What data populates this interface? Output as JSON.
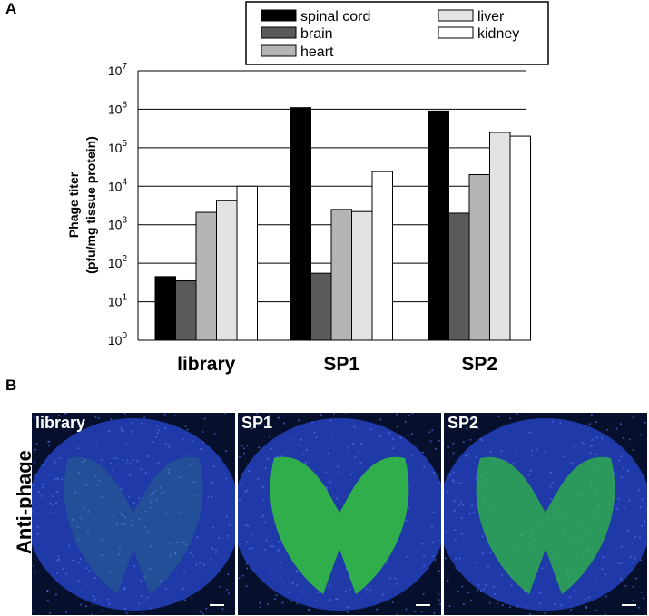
{
  "panels": {
    "a_label": "A",
    "b_label": "B"
  },
  "chart_data": {
    "type": "bar",
    "scale": "log",
    "ylim": [
      1,
      10000000
    ],
    "ylabel_lines": [
      "Phage titer",
      "(pfu/mg tissue protein)"
    ],
    "yticks": [
      {
        "base": "10",
        "exp": "0",
        "value": 1
      },
      {
        "base": "10",
        "exp": "1",
        "value": 10
      },
      {
        "base": "10",
        "exp": "2",
        "value": 100
      },
      {
        "base": "10",
        "exp": "3",
        "value": 1000
      },
      {
        "base": "10",
        "exp": "4",
        "value": 10000
      },
      {
        "base": "10",
        "exp": "5",
        "value": 100000
      },
      {
        "base": "10",
        "exp": "6",
        "value": 1000000
      },
      {
        "base": "10",
        "exp": "7",
        "value": 10000000
      }
    ],
    "grid": true,
    "legend_position": "top",
    "categories": [
      "library",
      "SP1",
      "SP2"
    ],
    "series": [
      {
        "name": "spinal cord",
        "color": "#000000",
        "values": [
          45,
          1100000,
          900000
        ]
      },
      {
        "name": "brain",
        "color": "#5a5a5a",
        "values": [
          35,
          55,
          2000
        ]
      },
      {
        "name": "heart",
        "color": "#b4b4b4",
        "values": [
          2100,
          2500,
          20000
        ]
      },
      {
        "name": "liver",
        "color": "#e3e3e3",
        "values": [
          4200,
          2200,
          250000
        ]
      },
      {
        "name": "kidney",
        "color": "#ffffff",
        "values": [
          10000,
          24000,
          200000
        ]
      }
    ]
  },
  "micrographs": [
    {
      "label": "library",
      "intensity": 0.15,
      "color": "#1f3fd6"
    },
    {
      "label": "SP1",
      "intensity": 0.8,
      "color": "#2f9f2f"
    },
    {
      "label": "SP2",
      "intensity": 0.65,
      "color": "#2f9f2f"
    }
  ],
  "row_label": "Anti-phage"
}
